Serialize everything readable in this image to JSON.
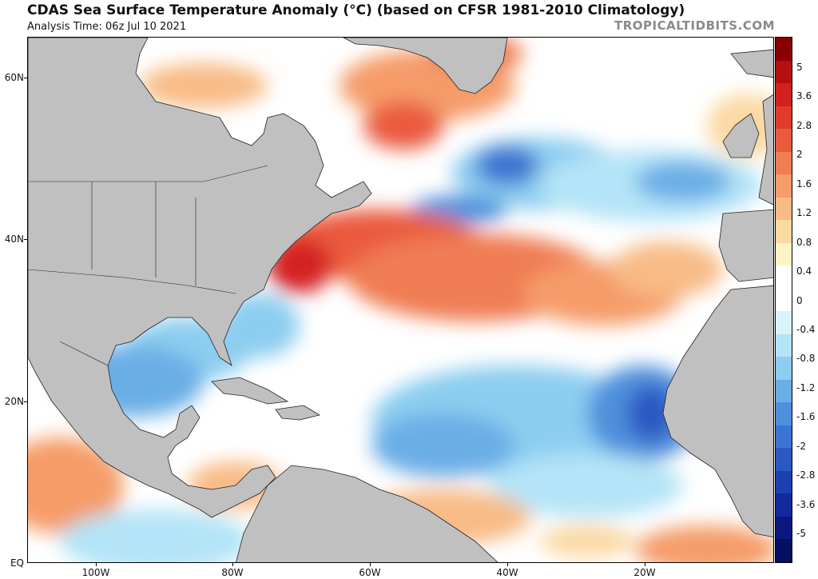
{
  "header": {
    "title": "CDAS Sea Surface Temperature Anomaly (°C) (based on CFSR 1981-2010 Climatology)",
    "subtitle": "Analysis Time: 06z Jul 10 2021",
    "credit": "TROPICALTIDBITS.COM"
  },
  "map": {
    "region": "North Atlantic Ocean",
    "land_color": "#c0c0c0",
    "border_color": "#222222",
    "latitude_labels": [
      "60N",
      "40N",
      "20N",
      "EQ"
    ],
    "longitude_labels": [
      "100W",
      "80W",
      "60W",
      "40W",
      "20W"
    ]
  },
  "colorbar": {
    "labels": [
      "5",
      "3.6",
      "2.8",
      "2",
      "1.6",
      "1.2",
      "0.8",
      "0.4",
      "0",
      "-0.4",
      "-0.8",
      "-1.2",
      "-1.6",
      "-2",
      "-2.8",
      "-3.6",
      "-5"
    ],
    "colors": [
      "#8a0000",
      "#b50f0f",
      "#d42020",
      "#e23b2b",
      "#ea5a3e",
      "#f07d52",
      "#f59c69",
      "#f8bb86",
      "#fbd9a3",
      "#fff3c4",
      "#ffffff",
      "#ffffff",
      "#d9f3fb",
      "#b4e4f7",
      "#8ccdf0",
      "#6aaee6",
      "#4f90dc",
      "#3c74d0",
      "#2c58c2",
      "#1e3fb2",
      "#12289c",
      "#0a1880",
      "#050e60"
    ]
  }
}
